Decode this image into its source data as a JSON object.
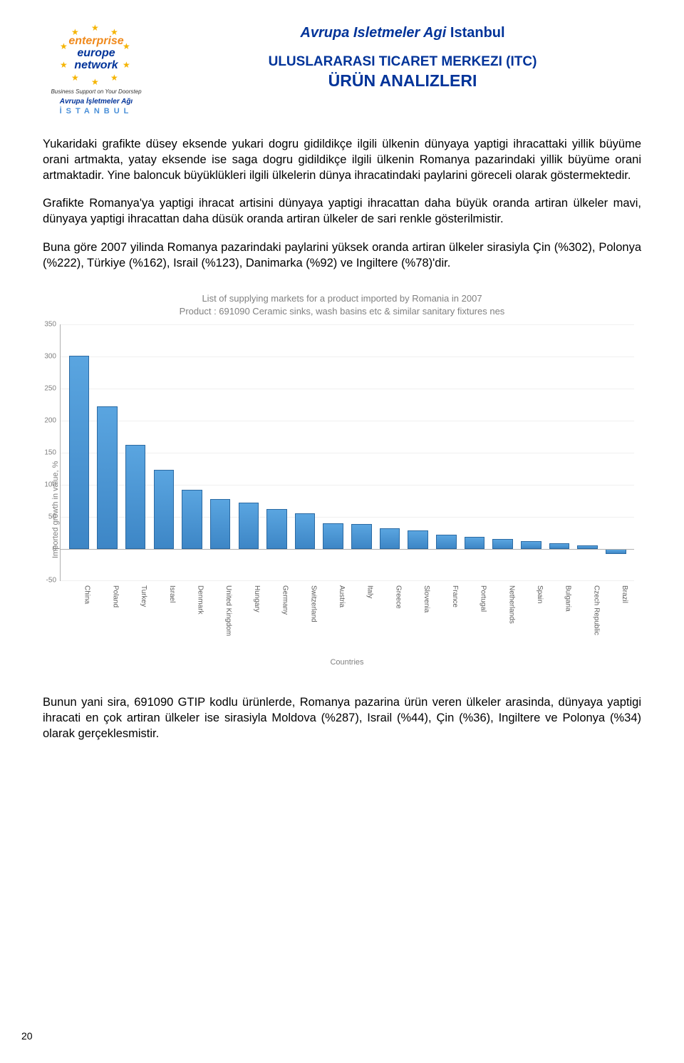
{
  "logo": {
    "enterprise": "enterprise",
    "europe": "europe",
    "network": "network",
    "tagline": "Business Support on Your Doorstep",
    "turkish": "Avrupa İşletmeler Ağı",
    "istanbul": "İSTANBUL"
  },
  "header": {
    "line1a": "Avrupa Isletmeler Agi",
    "line1b": "Istanbul",
    "line2": "ULUSLARARASI TICARET MERKEZI (ITC)",
    "line3": "ÜRÜN ANALIZLERI"
  },
  "paragraphs": {
    "p1": "Yukaridaki grafikte düsey eksende yukari dogru gidildikçe ilgili ülkenin dünyaya yaptigi ihracattaki yillik büyüme orani artmakta, yatay eksende ise saga dogru gidildikçe ilgili ülkenin Romanya pazarindaki yillik büyüme orani artmaktadir. Yine baloncuk büyüklükleri ilgili ülkelerin dünya ihracatindaki paylarini göreceli olarak göstermektedir.",
    "p2": "Grafikte Romanya'ya yaptigi ihracat artisini dünyaya yaptigi ihracattan daha büyük oranda artiran ülkeler mavi, dünyaya yaptigi ihracattan daha düsük oranda artiran ülkeler de sari renkle gösterilmistir.",
    "p3": "Buna göre 2007 yilinda Romanya pazarindaki paylarini yüksek oranda artiran ülkeler sirasiyla Çin (%302), Polonya (%222), Türkiye (%162), Israil (%123), Danimarka (%92) ve Ingiltere (%78)'dir.",
    "p4": "Bunun yani sira, 691090 GTIP kodlu ürünlerde, Romanya pazarina ürün veren ülkeler arasinda, dünyaya yaptigi ihracati en çok artiran ülkeler ise sirasiyla Moldova (%287), Israil (%44), Çin (%36), Ingiltere ve Polonya (%34) olarak gerçeklesmistir."
  },
  "chart": {
    "type": "bar",
    "title_line1": "List of supplying markets for a product imported by Romania in 2007",
    "title_line2": "Product : 691090 Ceramic sinks, wash basins etc & similar sanitary fixtures nes",
    "ylabel": "Imported growth in value, %",
    "xlabel": "Countries",
    "ymin": -50,
    "ymax": 350,
    "ytick_step": 50,
    "yticks": [
      -50,
      0,
      50,
      100,
      150,
      200,
      250,
      300,
      350
    ],
    "bar_fill_top": "#5aa5e0",
    "bar_fill_bottom": "#3d86c6",
    "bar_border": "#2b6aa3",
    "grid_color": "#f0f0f0",
    "axis_color": "#b0b0b0",
    "text_color": "#808080",
    "background_color": "#ffffff",
    "title_fontsize": 13,
    "label_fontsize": 11,
    "tick_fontsize": 10,
    "bar_width": 0.8,
    "categories": [
      "China",
      "Poland",
      "Turkey",
      "Israel",
      "Denmark",
      "United Kingdom",
      "Hungary",
      "Germany",
      "Switzerland",
      "Austria",
      "Italy",
      "Greece",
      "Slovenia",
      "France",
      "Portugal",
      "Netherlands",
      "Spain",
      "Bulgaria",
      "Czech Republic",
      "Brazil"
    ],
    "values": [
      302,
      222,
      162,
      123,
      92,
      78,
      72,
      62,
      55,
      40,
      38,
      32,
      28,
      22,
      18,
      15,
      12,
      8,
      5,
      -8
    ]
  },
  "page_number": "20"
}
